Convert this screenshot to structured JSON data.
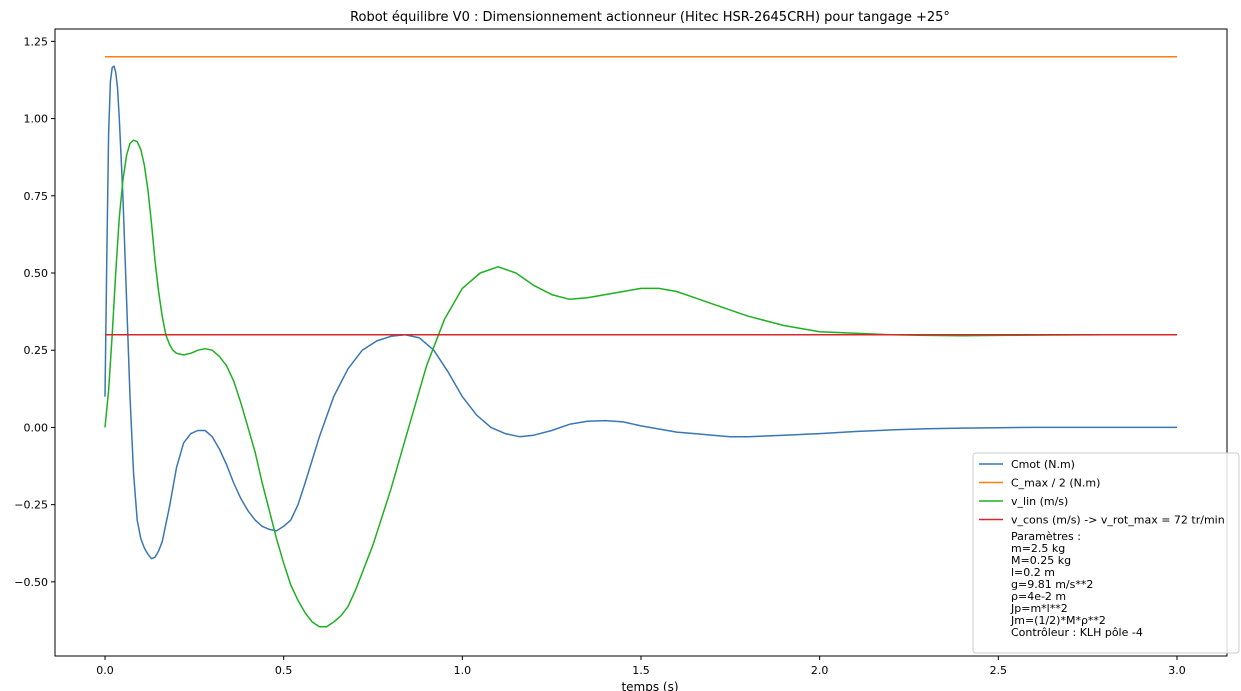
{
  "chart_data": {
    "type": "line",
    "title": "Robot équilibre V0 : Dimensionnement actionneur (Hitec HSR-2645CRH) pour tangage +25°",
    "xlabel": "temps (s)",
    "ylabel": "",
    "xlim": [
      -0.14,
      3.14
    ],
    "ylim": [
      -0.74,
      1.29
    ],
    "xticks": [
      0.0,
      0.5,
      1.0,
      1.5,
      2.0,
      2.5,
      3.0
    ],
    "xtick_labels": [
      "0.0",
      "0.5",
      "1.0",
      "1.5",
      "2.0",
      "2.5",
      "3.0"
    ],
    "yticks": [
      -0.5,
      -0.25,
      0.0,
      0.25,
      0.5,
      0.75,
      1.0,
      1.25
    ],
    "ytick_labels": [
      "−0.50",
      "−0.25",
      "0.00",
      "0.25",
      "0.50",
      "0.75",
      "1.00",
      "1.25"
    ],
    "grid": false,
    "legend_position": "bottom-right",
    "series": [
      {
        "name": "Cmot (N.m)",
        "color": "#3a76b4",
        "x": [
          0.0,
          0.005,
          0.01,
          0.015,
          0.02,
          0.025,
          0.03,
          0.035,
          0.04,
          0.05,
          0.06,
          0.07,
          0.08,
          0.09,
          0.1,
          0.11,
          0.12,
          0.13,
          0.14,
          0.15,
          0.16,
          0.18,
          0.2,
          0.22,
          0.24,
          0.26,
          0.28,
          0.3,
          0.32,
          0.34,
          0.36,
          0.38,
          0.4,
          0.42,
          0.44,
          0.46,
          0.48,
          0.5,
          0.52,
          0.54,
          0.56,
          0.6,
          0.64,
          0.68,
          0.72,
          0.76,
          0.8,
          0.84,
          0.88,
          0.92,
          0.96,
          1.0,
          1.04,
          1.08,
          1.12,
          1.16,
          1.2,
          1.25,
          1.3,
          1.35,
          1.4,
          1.45,
          1.5,
          1.55,
          1.6,
          1.65,
          1.7,
          1.75,
          1.8,
          1.9,
          2.0,
          2.1,
          2.2,
          2.3,
          2.4,
          2.5,
          2.6,
          2.8,
          3.0
        ],
        "y": [
          0.1,
          0.55,
          0.95,
          1.12,
          1.165,
          1.17,
          1.15,
          1.1,
          1.0,
          0.75,
          0.42,
          0.1,
          -0.15,
          -0.3,
          -0.36,
          -0.39,
          -0.41,
          -0.425,
          -0.42,
          -0.4,
          -0.37,
          -0.26,
          -0.13,
          -0.05,
          -0.02,
          -0.01,
          -0.01,
          -0.03,
          -0.07,
          -0.12,
          -0.18,
          -0.23,
          -0.27,
          -0.3,
          -0.32,
          -0.33,
          -0.335,
          -0.32,
          -0.3,
          -0.25,
          -0.18,
          -0.03,
          0.1,
          0.19,
          0.25,
          0.28,
          0.295,
          0.3,
          0.29,
          0.25,
          0.18,
          0.1,
          0.04,
          0.0,
          -0.02,
          -0.03,
          -0.025,
          -0.01,
          0.01,
          0.02,
          0.022,
          0.018,
          0.005,
          -0.005,
          -0.015,
          -0.02,
          -0.025,
          -0.03,
          -0.03,
          -0.025,
          -0.02,
          -0.013,
          -0.008,
          -0.004,
          -0.002,
          -0.001,
          0.0,
          0.0,
          0.0
        ]
      },
      {
        "name": "C_max / 2 (N.m)",
        "color": "#ff7f0e",
        "x": [
          0.0,
          3.0
        ],
        "y": [
          1.2,
          1.2
        ]
      },
      {
        "name": "v_lin (m/s)",
        "color": "#1fb022",
        "x": [
          0.0,
          0.01,
          0.02,
          0.03,
          0.04,
          0.05,
          0.06,
          0.07,
          0.08,
          0.09,
          0.1,
          0.11,
          0.12,
          0.13,
          0.14,
          0.15,
          0.16,
          0.17,
          0.18,
          0.19,
          0.2,
          0.22,
          0.24,
          0.26,
          0.28,
          0.3,
          0.32,
          0.34,
          0.36,
          0.38,
          0.4,
          0.42,
          0.44,
          0.46,
          0.48,
          0.5,
          0.52,
          0.54,
          0.56,
          0.58,
          0.6,
          0.62,
          0.64,
          0.66,
          0.68,
          0.7,
          0.72,
          0.75,
          0.8,
          0.85,
          0.9,
          0.95,
          1.0,
          1.05,
          1.1,
          1.15,
          1.2,
          1.25,
          1.3,
          1.35,
          1.4,
          1.45,
          1.5,
          1.55,
          1.6,
          1.65,
          1.7,
          1.75,
          1.8,
          1.85,
          1.9,
          1.95,
          2.0,
          2.1,
          2.2,
          2.3,
          2.4,
          2.5,
          2.6,
          2.8,
          3.0
        ],
        "y": [
          0.0,
          0.12,
          0.3,
          0.5,
          0.68,
          0.8,
          0.88,
          0.92,
          0.93,
          0.925,
          0.9,
          0.85,
          0.77,
          0.66,
          0.54,
          0.44,
          0.36,
          0.3,
          0.27,
          0.25,
          0.24,
          0.235,
          0.24,
          0.25,
          0.255,
          0.25,
          0.23,
          0.2,
          0.15,
          0.08,
          0.0,
          -0.08,
          -0.18,
          -0.27,
          -0.36,
          -0.44,
          -0.51,
          -0.56,
          -0.6,
          -0.63,
          -0.645,
          -0.645,
          -0.63,
          -0.61,
          -0.58,
          -0.53,
          -0.47,
          -0.38,
          -0.2,
          0.0,
          0.2,
          0.35,
          0.45,
          0.5,
          0.52,
          0.5,
          0.46,
          0.43,
          0.415,
          0.42,
          0.43,
          0.44,
          0.45,
          0.45,
          0.44,
          0.42,
          0.4,
          0.38,
          0.36,
          0.345,
          0.33,
          0.32,
          0.31,
          0.305,
          0.3,
          0.298,
          0.297,
          0.298,
          0.299,
          0.3,
          0.3
        ]
      },
      {
        "name": "v_cons (m/s) -> v_rot_max = 72 tr/min",
        "color": "#d62728",
        "x": [
          0.0,
          3.0
        ],
        "y": [
          0.3,
          0.3
        ]
      }
    ],
    "legend_params": {
      "title": "Paramètres :",
      "lines": [
        "m=2.5 kg",
        "M=0.25 kg",
        "l=0.2 m",
        "g=9.81 m/s**2",
        "ρ=4e-2 m",
        "Jp=m*l**2",
        "Jm=(1/2)*M*ρ**2",
        "Contrôleur : KLH pôle -4"
      ]
    }
  }
}
